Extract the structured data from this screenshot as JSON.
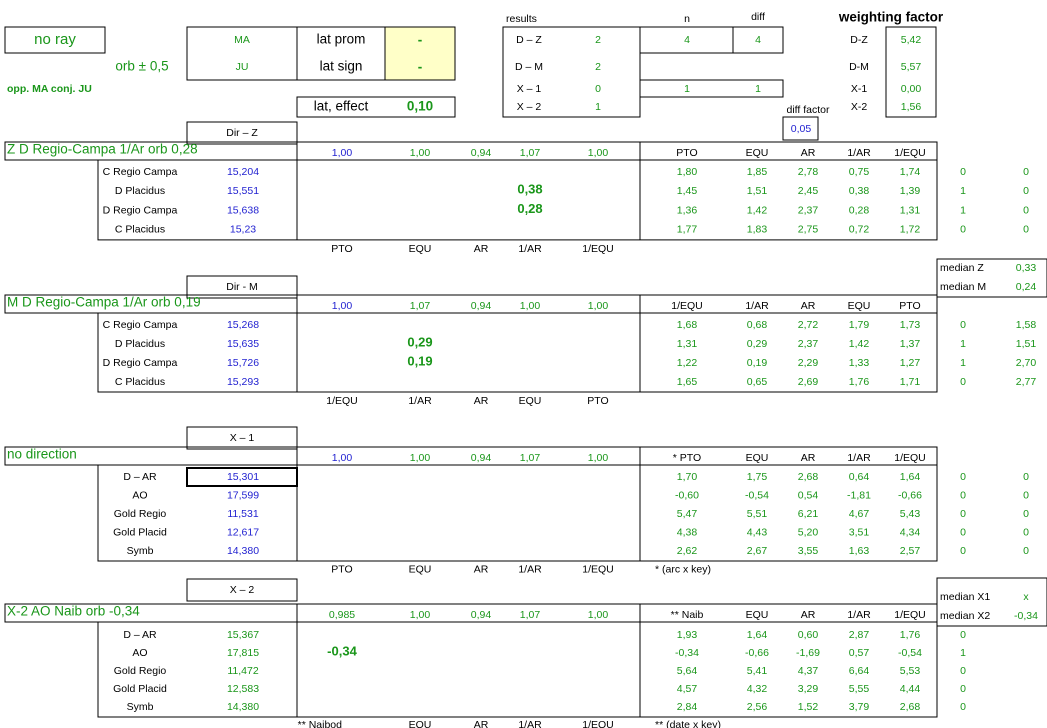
{
  "header": {
    "no_ray": "no ray",
    "orb": "orb ± 0,5",
    "opp": "opp. MA conj. JU",
    "ma": "MA",
    "ju": "JU",
    "lat_prom": "lat prom",
    "lat_prom_val": "-",
    "lat_sign": "lat sign",
    "lat_sign_val": "-",
    "lat_effect": "lat, effect",
    "lat_effect_val": "0,10"
  },
  "results": {
    "title": "results",
    "n": "n",
    "diff": "diff",
    "rows": [
      {
        "label": "D – Z",
        "count": "2",
        "n": "4",
        "diff": "4"
      },
      {
        "label": "D – M",
        "count": "2"
      },
      {
        "label": "X – 1",
        "count": "0",
        "n": "1",
        "diff": "1"
      },
      {
        "label": "X – 2",
        "count": "1"
      }
    ]
  },
  "weighting": {
    "title": "weighting factor",
    "rows": [
      [
        "D-Z",
        "5,42"
      ],
      [
        "D-M",
        "5,57"
      ],
      [
        "X-1",
        "0,00"
      ],
      [
        "X-2",
        "1,56"
      ]
    ]
  },
  "diff_factor": {
    "label": "diff factor",
    "value": "0,05"
  },
  "medians": [
    [
      "median Z",
      "0,33"
    ],
    [
      "median M",
      "0,24"
    ],
    [
      "median X1",
      "x"
    ],
    [
      "median X2",
      "-0,34"
    ]
  ],
  "sections": [
    {
      "dir": "Dir – Z",
      "title": "Z D Regio-Campa 1/Ar orb 0,28",
      "factors": [
        "1,00",
        "1,00",
        "0,94",
        "1,07",
        "1,00"
      ],
      "headers": [
        "PTO",
        "EQU",
        "AR",
        "1/AR",
        "1/EQU"
      ],
      "rows": [
        {
          "name": "C Regio Campa",
          "value": "15,204",
          "cols": [
            "1,80",
            "1,85",
            "2,78",
            "0,75",
            "1,74"
          ],
          "flags": [
            "0",
            "0"
          ]
        },
        {
          "name": "D Placidus",
          "value": "15,551",
          "highlight": "0,38",
          "cols": [
            "1,45",
            "1,51",
            "2,45",
            "0,38",
            "1,39"
          ],
          "flags": [
            "1",
            "0"
          ]
        },
        {
          "name": "D Regio Campa",
          "value": "15,638",
          "highlight": "0,28",
          "cols": [
            "1,36",
            "1,42",
            "2,37",
            "0,28",
            "1,31"
          ],
          "flags": [
            "1",
            "0"
          ]
        },
        {
          "name": "C Placidus",
          "value": "15,23",
          "cols": [
            "1,77",
            "1,83",
            "2,75",
            "0,72",
            "1,72"
          ],
          "flags": [
            "0",
            "0"
          ]
        }
      ],
      "footer": [
        "PTO",
        "EQU",
        "AR",
        "1/AR",
        "1/EQU"
      ]
    },
    {
      "dir": "Dir - M",
      "title": "M D Regio-Campa 1/Ar orb 0,19",
      "factors": [
        "1,00",
        "1,07",
        "0,94",
        "1,00",
        "1,00"
      ],
      "headers": [
        "1/EQU",
        "1/AR",
        "AR",
        "EQU",
        "PTO"
      ],
      "rows": [
        {
          "name": "C Regio Campa",
          "value": "15,268",
          "cols": [
            "1,68",
            "0,68",
            "2,72",
            "1,79",
            "1,73"
          ],
          "flags": [
            "0",
            "1,58"
          ]
        },
        {
          "name": "D Placidus",
          "value": "15,635",
          "highlight": "0,29",
          "cols": [
            "1,31",
            "0,29",
            "2,37",
            "1,42",
            "1,37"
          ],
          "flags": [
            "1",
            "1,51"
          ]
        },
        {
          "name": "D Regio Campa",
          "value": "15,726",
          "highlight": "0,19",
          "cols": [
            "1,22",
            "0,19",
            "2,29",
            "1,33",
            "1,27"
          ],
          "flags": [
            "1",
            "2,70"
          ]
        },
        {
          "name": "C Placidus",
          "value": "15,293",
          "cols": [
            "1,65",
            "0,65",
            "2,69",
            "1,76",
            "1,71"
          ],
          "flags": [
            "0",
            "2,77"
          ]
        }
      ],
      "footer": [
        "1/EQU",
        "1/AR",
        "AR",
        "EQU",
        "PTO"
      ]
    },
    {
      "dir": "X – 1",
      "title": "no direction",
      "factors": [
        "1,00",
        "1,00",
        "0,94",
        "1,07",
        "1,00"
      ],
      "headers": [
        "*  PTO",
        "EQU",
        "AR",
        "1/AR",
        "1/EQU"
      ],
      "rows": [
        {
          "name": "D – AR",
          "value": "15,301",
          "cols": [
            "1,70",
            "1,75",
            "2,68",
            "0,64",
            "1,64"
          ],
          "flags": [
            "0",
            "0"
          ]
        },
        {
          "name": "AO",
          "value": "17,599",
          "cols": [
            "-0,60",
            "-0,54",
            "0,54",
            "-1,81",
            "-0,66"
          ],
          "flags": [
            "0",
            "0"
          ]
        },
        {
          "name": "Gold Regio",
          "value": "11,531",
          "cols": [
            "5,47",
            "5,51",
            "6,21",
            "4,67",
            "5,43"
          ],
          "flags": [
            "0",
            "0"
          ]
        },
        {
          "name": "Gold Placid",
          "value": "12,617",
          "cols": [
            "4,38",
            "4,43",
            "5,20",
            "3,51",
            "4,34"
          ],
          "flags": [
            "0",
            "0"
          ]
        },
        {
          "name": "Symb",
          "value": "14,380",
          "cols": [
            "2,62",
            "2,67",
            "3,55",
            "1,63",
            "2,57"
          ],
          "flags": [
            "0",
            "0"
          ]
        }
      ],
      "footer": [
        "PTO",
        "EQU",
        "AR",
        "1/AR",
        "1/EQU"
      ],
      "note": "* (arc x key)"
    },
    {
      "dir": "X – 2",
      "title": "X-2 AO Naib orb -0,34",
      "factors": [
        "0,985",
        "1,00",
        "0,94",
        "1,07",
        "1,00"
      ],
      "headers": [
        "** Naib",
        "EQU",
        "AR",
        "1/AR",
        "1/EQU"
      ],
      "rows": [
        {
          "name": "D – AR",
          "value": "15,367",
          "cols": [
            "1,93",
            "1,64",
            "0,60",
            "2,87",
            "1,76"
          ],
          "flags": [
            "0"
          ]
        },
        {
          "name": "AO",
          "value": "17,815",
          "highlight": "-0,34",
          "cols": [
            "-0,34",
            "-0,66",
            "-1,69",
            "0,57",
            "-0,54"
          ],
          "flags": [
            "1"
          ]
        },
        {
          "name": "Gold Regio",
          "value": "11,472",
          "cols": [
            "5,64",
            "5,41",
            "4,37",
            "6,64",
            "5,53"
          ],
          "flags": [
            "0"
          ]
        },
        {
          "name": "Gold Placid",
          "value": "12,583",
          "cols": [
            "4,57",
            "4,32",
            "3,29",
            "5,55",
            "4,44"
          ],
          "flags": [
            "0"
          ]
        },
        {
          "name": "Symb",
          "value": "14,380",
          "cols": [
            "2,84",
            "2,56",
            "1,52",
            "3,79",
            "2,68"
          ],
          "flags": [
            "0"
          ]
        }
      ],
      "footer": [
        "**    Naibod",
        "EQU",
        "AR",
        "1/AR",
        "1/EQU"
      ],
      "note": "** (date x key)"
    }
  ]
}
